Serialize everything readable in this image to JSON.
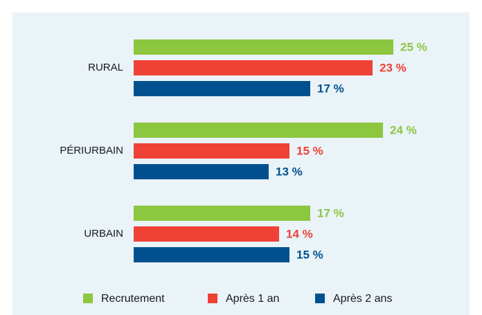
{
  "chart_data": {
    "type": "bar",
    "orientation": "horizontal",
    "categories": [
      "RURAL",
      "PÉRIURBAIN",
      "URBAIN"
    ],
    "series": [
      {
        "name": "Recrutement",
        "color": "#8dc63f",
        "values": [
          25,
          24,
          17
        ],
        "value_labels": [
          "25 %",
          "24 %",
          "17 %"
        ]
      },
      {
        "name": "Après 1 an",
        "color": "#ef4136",
        "values": [
          23,
          15,
          14
        ],
        "value_labels": [
          "23 %",
          "15 %",
          "14 %"
        ]
      },
      {
        "name": "Après 2 ans",
        "color": "#00508f",
        "values": [
          17,
          13,
          15
        ],
        "value_labels": [
          "17 %",
          "13 %",
          "15 %"
        ]
      }
    ]
  }
}
